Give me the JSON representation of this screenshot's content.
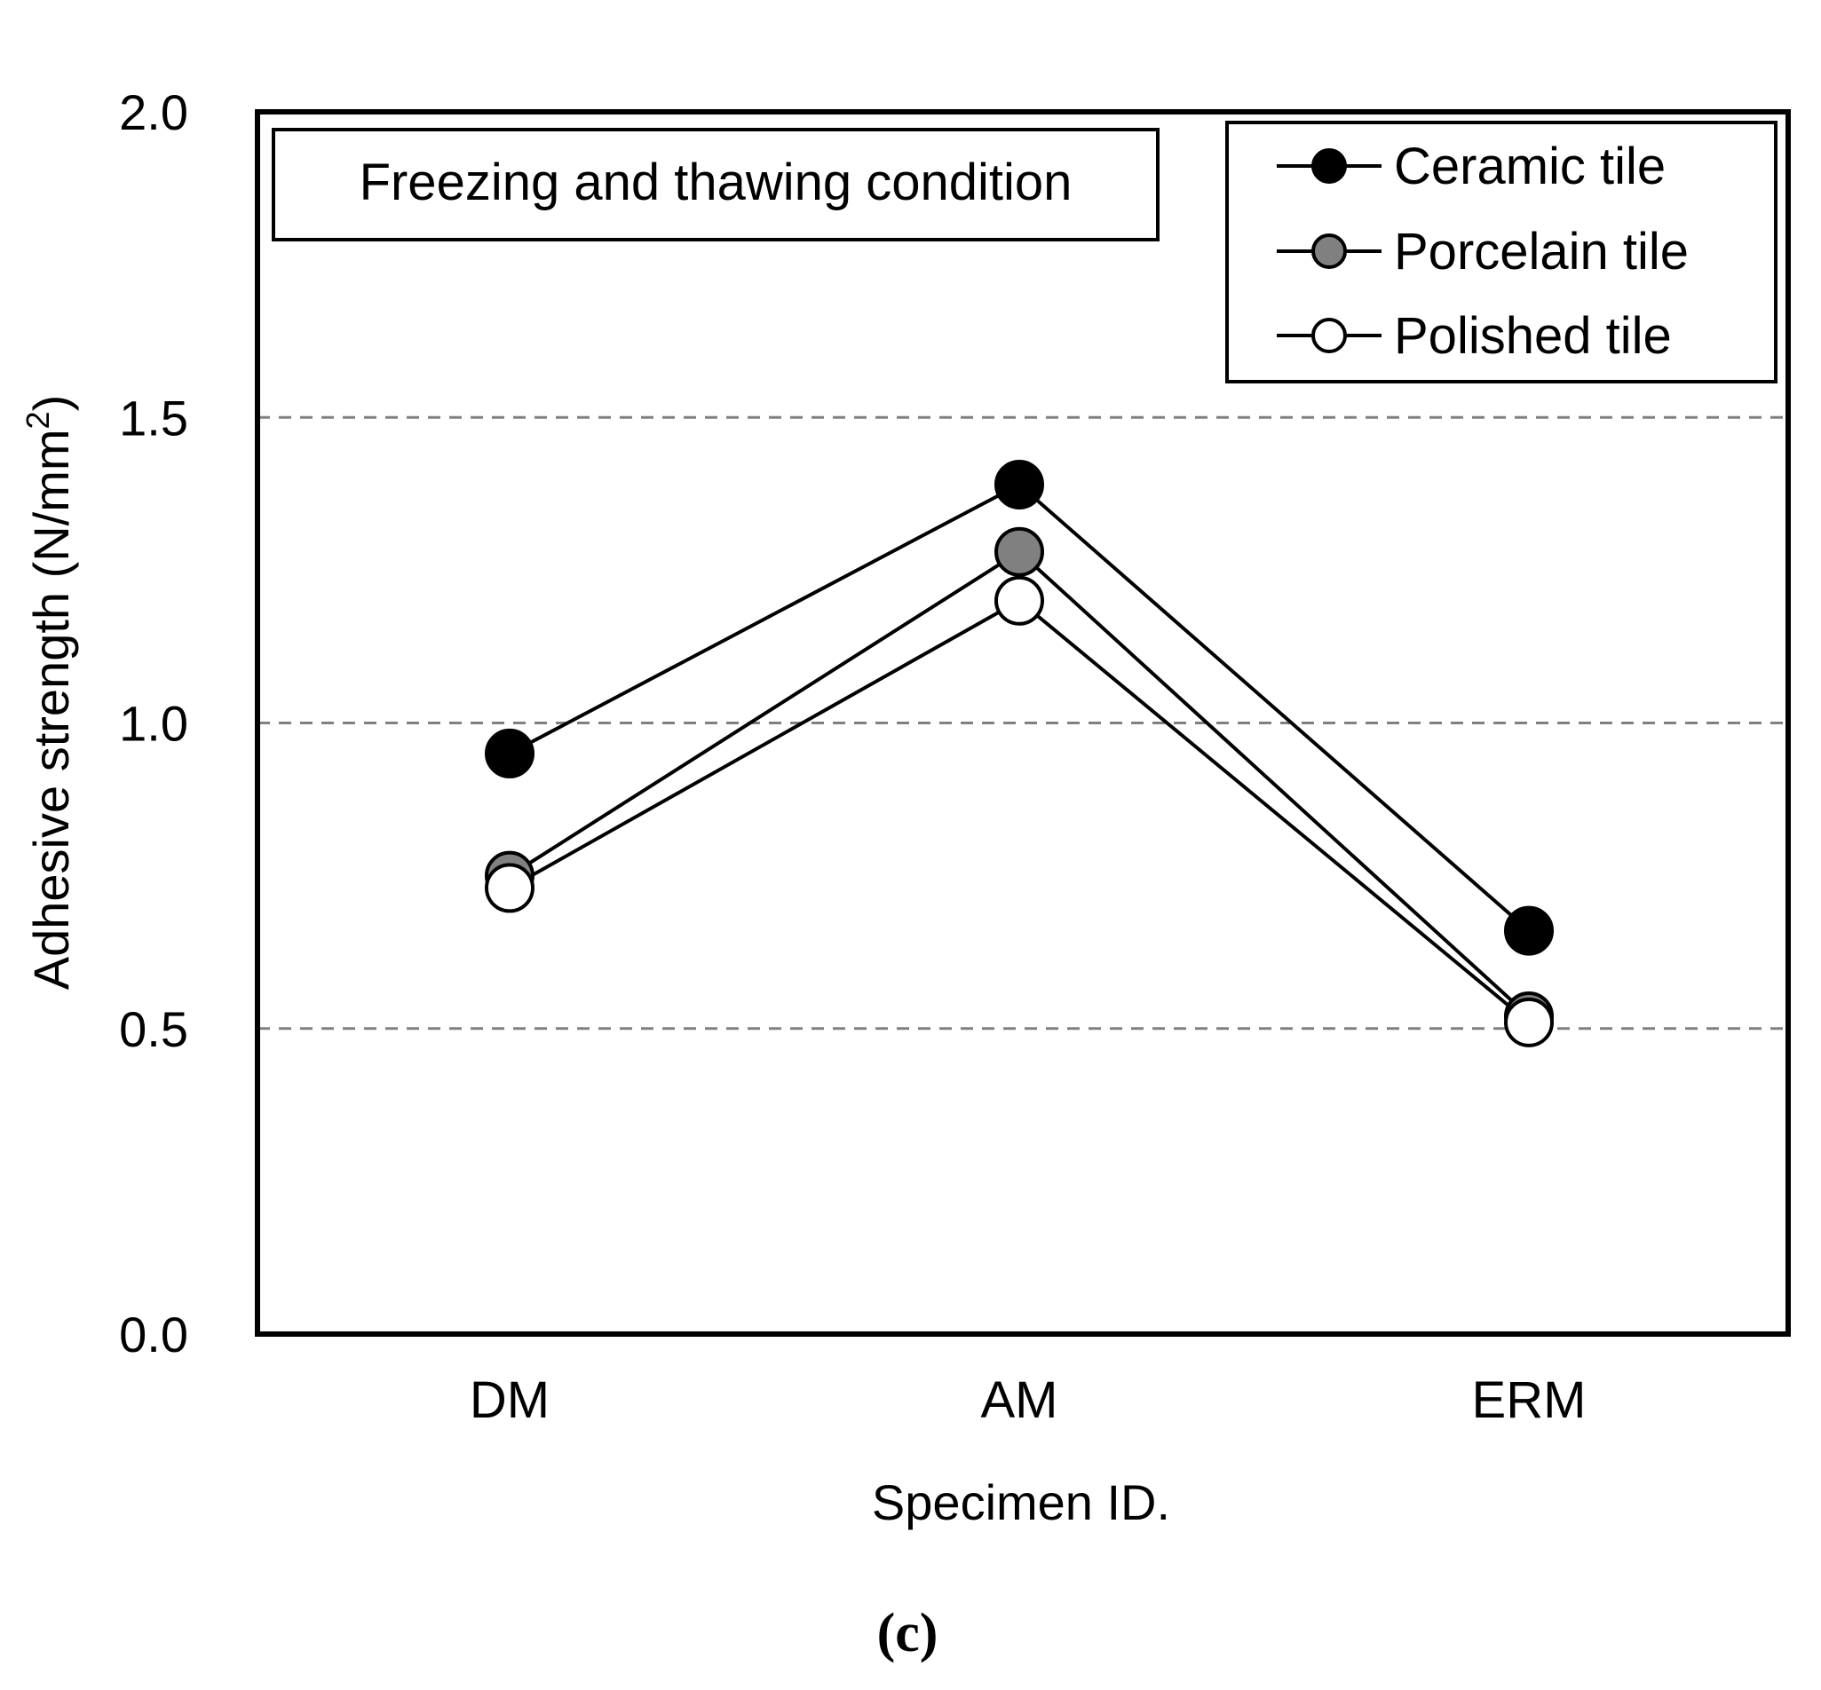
{
  "chart_data": {
    "type": "line",
    "title": "",
    "annotation": "Freezing and thawing condition",
    "xlabel": "Specimen ID.",
    "ylabel_main": "Adhesive strength (N/mm",
    "ylabel_superscript": "2",
    "ylabel_close": ")",
    "categories": [
      "DM",
      "AM",
      "ERM"
    ],
    "ylim": [
      0.0,
      2.0
    ],
    "yticks": [
      0.0,
      0.5,
      1.0,
      1.5,
      2.0
    ],
    "ytick_labels": [
      "0.0",
      "0.5",
      "1.0",
      "1.5",
      "2.0"
    ],
    "gridlines": [
      0.5,
      1.0,
      1.5
    ],
    "legend_position": "top-right",
    "series": [
      {
        "name": "Ceramic tile",
        "values": [
          0.95,
          1.39,
          0.66
        ],
        "marker_fill": "#000000"
      },
      {
        "name": "Porcelain tile",
        "values": [
          0.75,
          1.28,
          0.52
        ],
        "marker_fill": "#808080"
      },
      {
        "name": "Polished tile",
        "values": [
          0.73,
          1.2,
          0.51
        ],
        "marker_fill": "#ffffff"
      }
    ],
    "panel_label": "(c)"
  },
  "colors": {
    "axis": "#000000",
    "grid": "#808080",
    "line": "#000000"
  }
}
